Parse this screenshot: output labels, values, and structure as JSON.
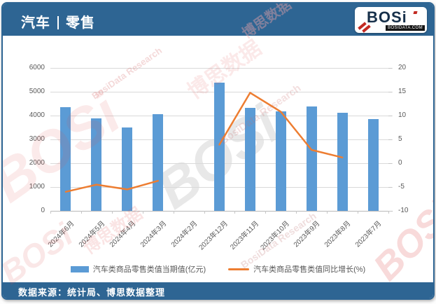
{
  "header": {
    "title_left": "汽车",
    "title_right": "零售"
  },
  "logo": {
    "brand": "BOSi",
    "domain": "BOSIDATA.COM"
  },
  "footer": {
    "source": "数据来源：统计局、博思数据整理"
  },
  "watermark": {
    "brand": "BOSi",
    "cn": "博思数据",
    "en": "BosiData Research"
  },
  "chart_data": {
    "type": "bar+line",
    "title": "汽车 | 零售",
    "categories": [
      "2024年6月",
      "2024年5月",
      "2024年4月",
      "2024年3月",
      "2024年2月",
      "2023年12月",
      "2023年11月",
      "2023年10月",
      "2023年9月",
      "2023年8月",
      "2023年7月"
    ],
    "series": [
      {
        "name": "汽车类商品零售类值当期值(亿元)",
        "type": "bar",
        "axis": "left",
        "color": "#5B9BD5",
        "values": [
          4340,
          3880,
          3500,
          4060,
          null,
          5390,
          4330,
          4170,
          4380,
          4120,
          3850
        ]
      },
      {
        "name": "汽车类商品零售类值同比增长(%)",
        "type": "line",
        "axis": "right",
        "color": "#ED7D31",
        "values": [
          -6.0,
          -4.5,
          -5.5,
          -3.7,
          null,
          3.9,
          14.8,
          10.8,
          2.8,
          1.2,
          null
        ]
      }
    ],
    "left_axis": {
      "min": 0,
      "max": 6000,
      "step": 1000,
      "ticks": [
        0,
        1000,
        2000,
        3000,
        4000,
        5000,
        6000
      ]
    },
    "right_axis": {
      "min": -10,
      "max": 20,
      "step": 5,
      "ticks": [
        -10,
        -5,
        0,
        5,
        10,
        15,
        20
      ]
    },
    "grid": true,
    "legend_position": "bottom",
    "theme_color": "#2e6593"
  }
}
